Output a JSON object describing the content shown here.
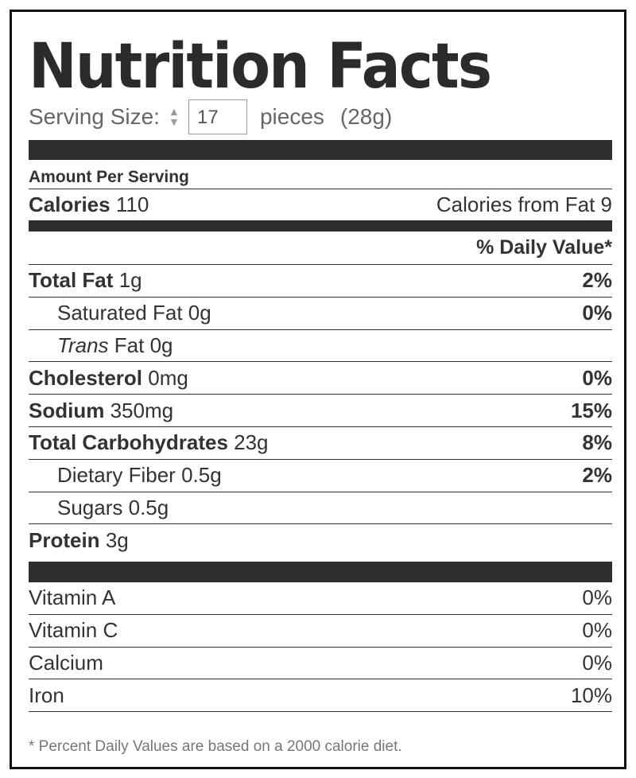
{
  "title": "Nutrition Facts",
  "serving": {
    "label": "Serving Size:",
    "quantity": "17",
    "unit": "pieces",
    "weight": "(28g)"
  },
  "amount_per_serving": "Amount Per Serving",
  "calories": {
    "label": "Calories",
    "value": "110",
    "from_fat_label": "Calories from Fat",
    "from_fat": "9"
  },
  "daily_value_header": "% Daily Value*",
  "nutrients": [
    {
      "label": "Total Fat",
      "amount": "1g",
      "dv": "2%"
    },
    {
      "label": "Saturated Fat",
      "amount": "0g",
      "dv": "0%"
    },
    {
      "label": "Trans",
      "label_rest": "Fat",
      "amount": "0g",
      "dv": ""
    },
    {
      "label": "Cholesterol",
      "amount": "0mg",
      "dv": "0%"
    },
    {
      "label": "Sodium",
      "amount": "350mg",
      "dv": "15%"
    },
    {
      "label": "Total Carbohydrates",
      "amount": "23g",
      "dv": "8%"
    },
    {
      "label": "Dietary Fiber",
      "amount": "0.5g",
      "dv": "2%"
    },
    {
      "label": "Sugars",
      "amount": "0.5g",
      "dv": ""
    },
    {
      "label": "Protein",
      "amount": "3g",
      "dv": ""
    }
  ],
  "vitamins": [
    {
      "label": "Vitamin A",
      "dv": "0%"
    },
    {
      "label": "Vitamin C",
      "dv": "0%"
    },
    {
      "label": "Calcium",
      "dv": "0%"
    },
    {
      "label": "Iron",
      "dv": "10%"
    }
  ],
  "footnote": "* Percent Daily Values are based on a 2000 calorie diet."
}
